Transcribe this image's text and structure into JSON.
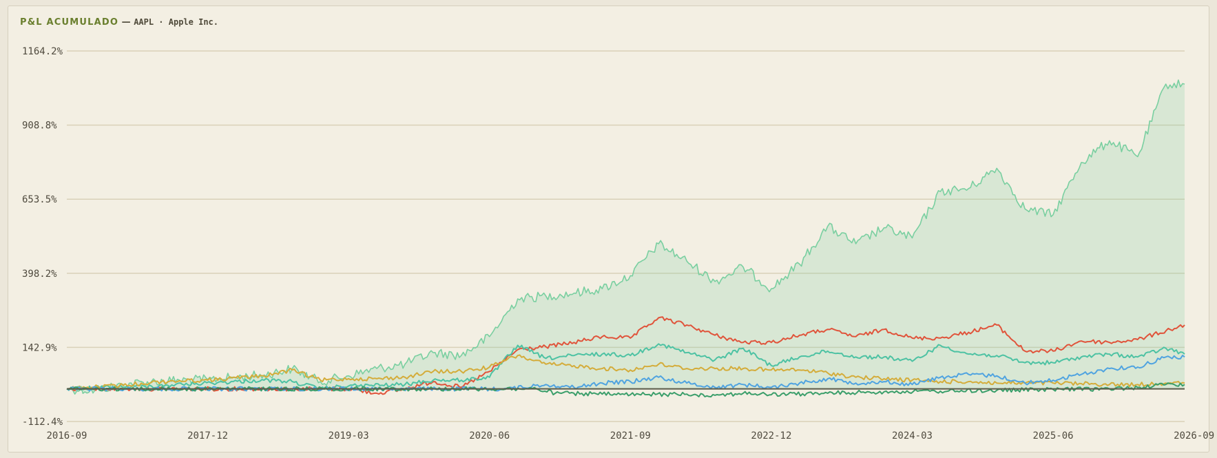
{
  "header": {
    "label": "P&L ACUMULADO",
    "separator": "—",
    "ticker": "AAPL · Apple Inc."
  },
  "chart_data": {
    "type": "line",
    "title": "P&L ACUMULADO — AAPL · Apple Inc.",
    "xlabel": "",
    "ylabel": "",
    "x_ticks": [
      "2016-09",
      "2017-12",
      "2019-03",
      "2020-06",
      "2021-09",
      "2022-12",
      "2024-03",
      "2025-06",
      "2026-09"
    ],
    "y_ticks": [
      "1164.2%",
      "908.8%",
      "653.5%",
      "398.2%",
      "142.9%",
      "-112.4%"
    ],
    "ylim": [
      -112.4,
      1164.2
    ],
    "xlim": [
      "2016-09",
      "2026-08"
    ],
    "grid": "horizontal",
    "legend": "none",
    "series": [
      {
        "color": "#79cfa0",
        "fill": true,
        "points": [
          [
            "2016-09",
            0
          ],
          [
            "2016-12",
            -5
          ],
          [
            "2017-03",
            15
          ],
          [
            "2017-06",
            25
          ],
          [
            "2017-09",
            30
          ],
          [
            "2017-12",
            32
          ],
          [
            "2018-03",
            40
          ],
          [
            "2018-06",
            48
          ],
          [
            "2018-09",
            70
          ],
          [
            "2018-12",
            25
          ],
          [
            "2019-03",
            45
          ],
          [
            "2019-06",
            70
          ],
          [
            "2019-09",
            85
          ],
          [
            "2019-12",
            125
          ],
          [
            "2020-03",
            115
          ],
          [
            "2020-06",
            180
          ],
          [
            "2020-09",
            310
          ],
          [
            "2020-12",
            320
          ],
          [
            "2021-03",
            330
          ],
          [
            "2021-06",
            345
          ],
          [
            "2021-09",
            390
          ],
          [
            "2021-12",
            500
          ],
          [
            "2022-03",
            440
          ],
          [
            "2022-06",
            370
          ],
          [
            "2022-09",
            420
          ],
          [
            "2022-12",
            345
          ],
          [
            "2023-03",
            430
          ],
          [
            "2023-06",
            560
          ],
          [
            "2023-09",
            500
          ],
          [
            "2023-12",
            555
          ],
          [
            "2024-03",
            520
          ],
          [
            "2024-06",
            680
          ],
          [
            "2024-09",
            690
          ],
          [
            "2024-12",
            760
          ],
          [
            "2025-03",
            620
          ],
          [
            "2025-06",
            600
          ],
          [
            "2025-09",
            780
          ],
          [
            "2025-12",
            855
          ],
          [
            "2026-03",
            800
          ],
          [
            "2026-06",
            1050
          ],
          [
            "2026-08",
            1050
          ]
        ]
      },
      {
        "color": "#e0533a",
        "fill": false,
        "points": [
          [
            "2016-09",
            0
          ],
          [
            "2019-03",
            0
          ],
          [
            "2019-06",
            -15
          ],
          [
            "2019-09",
            0
          ],
          [
            "2019-12",
            25
          ],
          [
            "2020-03",
            5
          ],
          [
            "2020-06",
            60
          ],
          [
            "2020-09",
            135
          ],
          [
            "2020-12",
            145
          ],
          [
            "2021-03",
            160
          ],
          [
            "2021-06",
            180
          ],
          [
            "2021-09",
            175
          ],
          [
            "2021-12",
            245
          ],
          [
            "2022-03",
            220
          ],
          [
            "2022-06",
            185
          ],
          [
            "2022-09",
            160
          ],
          [
            "2022-12",
            160
          ],
          [
            "2023-03",
            185
          ],
          [
            "2023-06",
            205
          ],
          [
            "2023-09",
            180
          ],
          [
            "2023-12",
            205
          ],
          [
            "2024-03",
            175
          ],
          [
            "2024-06",
            175
          ],
          [
            "2024-09",
            195
          ],
          [
            "2024-12",
            220
          ],
          [
            "2025-03",
            130
          ],
          [
            "2025-06",
            130
          ],
          [
            "2025-09",
            165
          ],
          [
            "2025-12",
            160
          ],
          [
            "2026-03",
            170
          ],
          [
            "2026-08",
            220
          ]
        ]
      },
      {
        "color": "#4dc2a3",
        "fill": false,
        "points": [
          [
            "2016-09",
            0
          ],
          [
            "2017-06",
            10
          ],
          [
            "2018-06",
            30
          ],
          [
            "2018-09",
            25
          ],
          [
            "2018-12",
            0
          ],
          [
            "2019-03",
            10
          ],
          [
            "2019-09",
            15
          ],
          [
            "2019-12",
            30
          ],
          [
            "2020-03",
            30
          ],
          [
            "2020-06",
            40
          ],
          [
            "2020-09",
            150
          ],
          [
            "2020-12",
            105
          ],
          [
            "2021-03",
            115
          ],
          [
            "2021-06",
            120
          ],
          [
            "2021-09",
            115
          ],
          [
            "2021-12",
            155
          ],
          [
            "2022-03",
            125
          ],
          [
            "2022-06",
            100
          ],
          [
            "2022-09",
            140
          ],
          [
            "2022-12",
            80
          ],
          [
            "2023-03",
            110
          ],
          [
            "2023-06",
            130
          ],
          [
            "2023-09",
            110
          ],
          [
            "2023-12",
            110
          ],
          [
            "2024-03",
            95
          ],
          [
            "2024-06",
            150
          ],
          [
            "2024-09",
            120
          ],
          [
            "2024-12",
            115
          ],
          [
            "2025-03",
            90
          ],
          [
            "2025-06",
            90
          ],
          [
            "2025-09",
            110
          ],
          [
            "2025-12",
            120
          ],
          [
            "2026-03",
            110
          ],
          [
            "2026-06",
            140
          ],
          [
            "2026-08",
            120
          ]
        ]
      },
      {
        "color": "#d4ac3a",
        "fill": false,
        "points": [
          [
            "2016-09",
            0
          ],
          [
            "2017-03",
            12
          ],
          [
            "2017-06",
            22
          ],
          [
            "2017-09",
            28
          ],
          [
            "2017-12",
            30
          ],
          [
            "2018-03",
            38
          ],
          [
            "2018-06",
            45
          ],
          [
            "2018-09",
            65
          ],
          [
            "2018-12",
            30
          ],
          [
            "2019-03",
            35
          ],
          [
            "2019-06",
            35
          ],
          [
            "2019-09",
            40
          ],
          [
            "2019-12",
            60
          ],
          [
            "2020-03",
            60
          ],
          [
            "2020-06",
            75
          ],
          [
            "2020-09",
            115
          ],
          [
            "2020-12",
            85
          ],
          [
            "2021-03",
            80
          ],
          [
            "2021-06",
            70
          ],
          [
            "2021-09",
            65
          ],
          [
            "2021-12",
            85
          ],
          [
            "2022-03",
            70
          ],
          [
            "2022-06",
            70
          ],
          [
            "2022-09",
            70
          ],
          [
            "2022-12",
            65
          ],
          [
            "2023-03",
            65
          ],
          [
            "2023-06",
            55
          ],
          [
            "2023-09",
            40
          ],
          [
            "2023-12",
            35
          ],
          [
            "2024-03",
            30
          ],
          [
            "2024-06",
            25
          ],
          [
            "2024-09",
            25
          ],
          [
            "2024-12",
            20
          ],
          [
            "2025-03",
            20
          ],
          [
            "2025-06",
            20
          ],
          [
            "2025-09",
            18
          ],
          [
            "2025-12",
            15
          ],
          [
            "2026-03",
            15
          ],
          [
            "2026-06",
            20
          ],
          [
            "2026-08",
            20
          ]
        ]
      },
      {
        "color": "#4fa3e0",
        "fill": false,
        "points": [
          [
            "2016-09",
            0
          ],
          [
            "2020-08",
            0
          ],
          [
            "2020-12",
            15
          ],
          [
            "2021-03",
            5
          ],
          [
            "2021-06",
            20
          ],
          [
            "2021-09",
            25
          ],
          [
            "2021-12",
            40
          ],
          [
            "2022-03",
            20
          ],
          [
            "2022-06",
            5
          ],
          [
            "2022-09",
            15
          ],
          [
            "2022-12",
            5
          ],
          [
            "2023-03",
            20
          ],
          [
            "2023-06",
            35
          ],
          [
            "2023-09",
            20
          ],
          [
            "2023-12",
            25
          ],
          [
            "2024-03",
            15
          ],
          [
            "2024-06",
            40
          ],
          [
            "2024-09",
            50
          ],
          [
            "2024-12",
            45
          ],
          [
            "2025-03",
            20
          ],
          [
            "2025-06",
            30
          ],
          [
            "2025-09",
            50
          ],
          [
            "2025-12",
            70
          ],
          [
            "2026-03",
            75
          ],
          [
            "2026-06",
            110
          ],
          [
            "2026-08",
            110
          ]
        ]
      },
      {
        "color": "#3a9e6a",
        "fill": false,
        "points": [
          [
            "2016-09",
            0
          ],
          [
            "2020-11",
            0
          ],
          [
            "2021-01",
            -15
          ],
          [
            "2021-06",
            -18
          ],
          [
            "2021-09",
            -20
          ],
          [
            "2022-03",
            -18
          ],
          [
            "2022-06",
            -22
          ],
          [
            "2022-09",
            -15
          ],
          [
            "2022-12",
            -20
          ],
          [
            "2023-06",
            -15
          ],
          [
            "2023-12",
            -10
          ],
          [
            "2024-06",
            -8
          ],
          [
            "2024-12",
            -5
          ],
          [
            "2025-06",
            -2
          ],
          [
            "2025-12",
            0
          ],
          [
            "2026-03",
            5
          ],
          [
            "2026-06",
            15
          ],
          [
            "2026-08",
            15
          ]
        ]
      },
      {
        "color": "#5a5a48",
        "fill": false,
        "points": [
          [
            "2016-09",
            0
          ],
          [
            "2026-08",
            0
          ]
        ]
      }
    ]
  }
}
